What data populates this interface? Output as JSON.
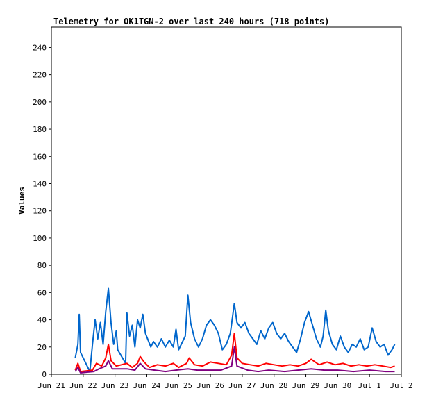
{
  "chart_data": {
    "type": "line",
    "title": "Telemetry for OK1TGN-2 over last 240 hours (718 points)",
    "xlabel": "",
    "ylabel": "Values",
    "xlim": [
      "2026-06-21",
      "2026-07-02"
    ],
    "ylim": [
      0,
      255
    ],
    "grid": false,
    "legend": "none",
    "x_ticks": [
      "Jun 21",
      "Jun 22",
      "Jun 23",
      "Jun 24",
      "Jun 25",
      "Jun 26",
      "Jun 27",
      "Jun 28",
      "Jun 29",
      "Jun 30",
      "Jul 1",
      "Jul 2"
    ],
    "x_tick_dates": [
      "2026-06-21",
      "2026-06-22",
      "2026-06-23",
      "2026-06-24",
      "2026-06-25",
      "2026-06-26",
      "2026-06-27",
      "2026-06-28",
      "2026-06-29",
      "2026-06-30",
      "2026-07-01",
      "2026-07-02"
    ],
    "y_ticks": [
      0,
      20,
      40,
      60,
      80,
      100,
      120,
      140,
      160,
      180,
      200,
      220,
      240
    ],
    "series": [
      {
        "color": "#0066cc",
        "points": [
          [
            "2026-06-21 18:00",
            12
          ],
          [
            "2026-06-21 20:00",
            22
          ],
          [
            "2026-06-21 21:00",
            44
          ],
          [
            "2026-06-21 22:00",
            16
          ],
          [
            "2026-06-22 05:00",
            2
          ],
          [
            "2026-06-22 07:00",
            22
          ],
          [
            "2026-06-22 09:00",
            40
          ],
          [
            "2026-06-22 11:00",
            26
          ],
          [
            "2026-06-22 13:00",
            38
          ],
          [
            "2026-06-22 15:00",
            22
          ],
          [
            "2026-06-22 17:00",
            46
          ],
          [
            "2026-06-22 19:00",
            63
          ],
          [
            "2026-06-22 21:00",
            38
          ],
          [
            "2026-06-22 23:00",
            22
          ],
          [
            "2026-06-23 01:00",
            32
          ],
          [
            "2026-06-23 02:00",
            18
          ],
          [
            "2026-06-23 08:00",
            8
          ],
          [
            "2026-06-23 09:00",
            45
          ],
          [
            "2026-06-23 11:00",
            28
          ],
          [
            "2026-06-23 13:00",
            36
          ],
          [
            "2026-06-23 15:00",
            20
          ],
          [
            "2026-06-23 17:00",
            40
          ],
          [
            "2026-06-23 19:00",
            34
          ],
          [
            "2026-06-23 21:00",
            44
          ],
          [
            "2026-06-23 23:00",
            30
          ],
          [
            "2026-06-24 03:00",
            20
          ],
          [
            "2026-06-24 05:00",
            24
          ],
          [
            "2026-06-24 08:00",
            20
          ],
          [
            "2026-06-24 11:00",
            26
          ],
          [
            "2026-06-24 14:00",
            20
          ],
          [
            "2026-06-24 17:00",
            25
          ],
          [
            "2026-06-24 20:00",
            20
          ],
          [
            "2026-06-24 22:00",
            33
          ],
          [
            "2026-06-25 00:00",
            18
          ],
          [
            "2026-06-25 05:00",
            28
          ],
          [
            "2026-06-25 07:00",
            58
          ],
          [
            "2026-06-25 09:00",
            38
          ],
          [
            "2026-06-25 12:00",
            26
          ],
          [
            "2026-06-25 15:00",
            20
          ],
          [
            "2026-06-25 18:00",
            26
          ],
          [
            "2026-06-25 21:00",
            36
          ],
          [
            "2026-06-26 00:00",
            40
          ],
          [
            "2026-06-26 03:00",
            36
          ],
          [
            "2026-06-26 06:00",
            30
          ],
          [
            "2026-06-26 09:00",
            18
          ],
          [
            "2026-06-26 12:00",
            22
          ],
          [
            "2026-06-26 15:00",
            30
          ],
          [
            "2026-06-26 18:00",
            52
          ],
          [
            "2026-06-26 20:00",
            38
          ],
          [
            "2026-06-26 23:00",
            34
          ],
          [
            "2026-06-27 02:00",
            38
          ],
          [
            "2026-06-27 05:00",
            30
          ],
          [
            "2026-06-27 08:00",
            26
          ],
          [
            "2026-06-27 11:00",
            22
          ],
          [
            "2026-06-27 14:00",
            32
          ],
          [
            "2026-06-27 17:00",
            26
          ],
          [
            "2026-06-27 20:00",
            34
          ],
          [
            "2026-06-27 23:00",
            38
          ],
          [
            "2026-06-28 02:00",
            30
          ],
          [
            "2026-06-28 05:00",
            26
          ],
          [
            "2026-06-28 08:00",
            30
          ],
          [
            "2026-06-28 11:00",
            24
          ],
          [
            "2026-06-28 14:00",
            20
          ],
          [
            "2026-06-28 17:00",
            16
          ],
          [
            "2026-06-28 20:00",
            26
          ],
          [
            "2026-06-28 23:00",
            38
          ],
          [
            "2026-06-29 02:00",
            46
          ],
          [
            "2026-06-29 05:00",
            36
          ],
          [
            "2026-06-29 08:00",
            26
          ],
          [
            "2026-06-29 11:00",
            20
          ],
          [
            "2026-06-29 13:00",
            28
          ],
          [
            "2026-06-29 15:00",
            47
          ],
          [
            "2026-06-29 17:00",
            32
          ],
          [
            "2026-06-29 20:00",
            22
          ],
          [
            "2026-06-29 23:00",
            18
          ],
          [
            "2026-06-30 02:00",
            28
          ],
          [
            "2026-06-30 05:00",
            20
          ],
          [
            "2026-06-30 08:00",
            16
          ],
          [
            "2026-06-30 11:00",
            22
          ],
          [
            "2026-06-30 14:00",
            20
          ],
          [
            "2026-06-30 17:00",
            26
          ],
          [
            "2026-06-30 20:00",
            18
          ],
          [
            "2026-06-30 23:00",
            20
          ],
          [
            "2026-07-01 02:00",
            34
          ],
          [
            "2026-07-01 05:00",
            24
          ],
          [
            "2026-07-01 08:00",
            20
          ],
          [
            "2026-07-01 11:00",
            22
          ],
          [
            "2026-07-01 14:00",
            14
          ],
          [
            "2026-07-01 17:00",
            18
          ],
          [
            "2026-07-01 19:00",
            22
          ]
        ]
      },
      {
        "color": "#ff0000",
        "points": [
          [
            "2026-06-21 18:00",
            3
          ],
          [
            "2026-06-21 20:00",
            8
          ],
          [
            "2026-06-21 22:00",
            2
          ],
          [
            "2026-06-22 07:00",
            3
          ],
          [
            "2026-06-22 10:00",
            8
          ],
          [
            "2026-06-22 14:00",
            6
          ],
          [
            "2026-06-22 17:00",
            12
          ],
          [
            "2026-06-22 19:00",
            22
          ],
          [
            "2026-06-22 21:00",
            10
          ],
          [
            "2026-06-23 01:00",
            6
          ],
          [
            "2026-06-23 09:00",
            8
          ],
          [
            "2026-06-23 13:00",
            5
          ],
          [
            "2026-06-23 17:00",
            8
          ],
          [
            "2026-06-23 19:00",
            13
          ],
          [
            "2026-06-23 22:00",
            9
          ],
          [
            "2026-06-24 02:00",
            5
          ],
          [
            "2026-06-24 08:00",
            7
          ],
          [
            "2026-06-24 14:00",
            6
          ],
          [
            "2026-06-24 20:00",
            8
          ],
          [
            "2026-06-25 00:00",
            5
          ],
          [
            "2026-06-25 06:00",
            8
          ],
          [
            "2026-06-25 08:00",
            12
          ],
          [
            "2026-06-25 12:00",
            7
          ],
          [
            "2026-06-25 18:00",
            6
          ],
          [
            "2026-06-26 00:00",
            9
          ],
          [
            "2026-06-26 06:00",
            8
          ],
          [
            "2026-06-26 12:00",
            7
          ],
          [
            "2026-06-26 16:00",
            14
          ],
          [
            "2026-06-26 18:00",
            30
          ],
          [
            "2026-06-26 20:00",
            12
          ],
          [
            "2026-06-27 00:00",
            8
          ],
          [
            "2026-06-27 06:00",
            7
          ],
          [
            "2026-06-27 12:00",
            6
          ],
          [
            "2026-06-27 18:00",
            8
          ],
          [
            "2026-06-28 00:00",
            7
          ],
          [
            "2026-06-28 06:00",
            6
          ],
          [
            "2026-06-28 12:00",
            7
          ],
          [
            "2026-06-28 18:00",
            6
          ],
          [
            "2026-06-29 00:00",
            8
          ],
          [
            "2026-06-29 04:00",
            11
          ],
          [
            "2026-06-29 10:00",
            7
          ],
          [
            "2026-06-29 16:00",
            9
          ],
          [
            "2026-06-29 22:00",
            7
          ],
          [
            "2026-06-30 04:00",
            8
          ],
          [
            "2026-06-30 10:00",
            6
          ],
          [
            "2026-06-30 16:00",
            7
          ],
          [
            "2026-06-30 22:00",
            6
          ],
          [
            "2026-07-01 04:00",
            7
          ],
          [
            "2026-07-01 10:00",
            6
          ],
          [
            "2026-07-01 16:00",
            5
          ],
          [
            "2026-07-01 19:00",
            6
          ]
        ]
      },
      {
        "color": "#800080",
        "points": [
          [
            "2026-06-21 18:00",
            2
          ],
          [
            "2026-06-21 20:00",
            5
          ],
          [
            "2026-06-21 22:00",
            1
          ],
          [
            "2026-06-22 08:00",
            2
          ],
          [
            "2026-06-22 12:00",
            4
          ],
          [
            "2026-06-22 17:00",
            6
          ],
          [
            "2026-06-22 19:00",
            10
          ],
          [
            "2026-06-22 22:00",
            4
          ],
          [
            "2026-06-23 09:00",
            4
          ],
          [
            "2026-06-23 15:00",
            3
          ],
          [
            "2026-06-23 19:00",
            8
          ],
          [
            "2026-06-23 23:00",
            4
          ],
          [
            "2026-06-24 06:00",
            3
          ],
          [
            "2026-06-24 14:00",
            2
          ],
          [
            "2026-06-24 22:00",
            3
          ],
          [
            "2026-06-25 07:00",
            4
          ],
          [
            "2026-06-25 14:00",
            3
          ],
          [
            "2026-06-25 22:00",
            3
          ],
          [
            "2026-06-26 08:00",
            3
          ],
          [
            "2026-06-26 16:00",
            6
          ],
          [
            "2026-06-26 18:00",
            20
          ],
          [
            "2026-06-26 20:00",
            6
          ],
          [
            "2026-06-27 04:00",
            3
          ],
          [
            "2026-06-27 12:00",
            2
          ],
          [
            "2026-06-27 20:00",
            3
          ],
          [
            "2026-06-28 08:00",
            2
          ],
          [
            "2026-06-28 18:00",
            3
          ],
          [
            "2026-06-29 04:00",
            4
          ],
          [
            "2026-06-29 14:00",
            3
          ],
          [
            "2026-06-30 00:00",
            3
          ],
          [
            "2026-06-30 12:00",
            2
          ],
          [
            "2026-07-01 00:00",
            3
          ],
          [
            "2026-07-01 12:00",
            2
          ],
          [
            "2026-07-01 19:00",
            2
          ]
        ]
      }
    ]
  }
}
